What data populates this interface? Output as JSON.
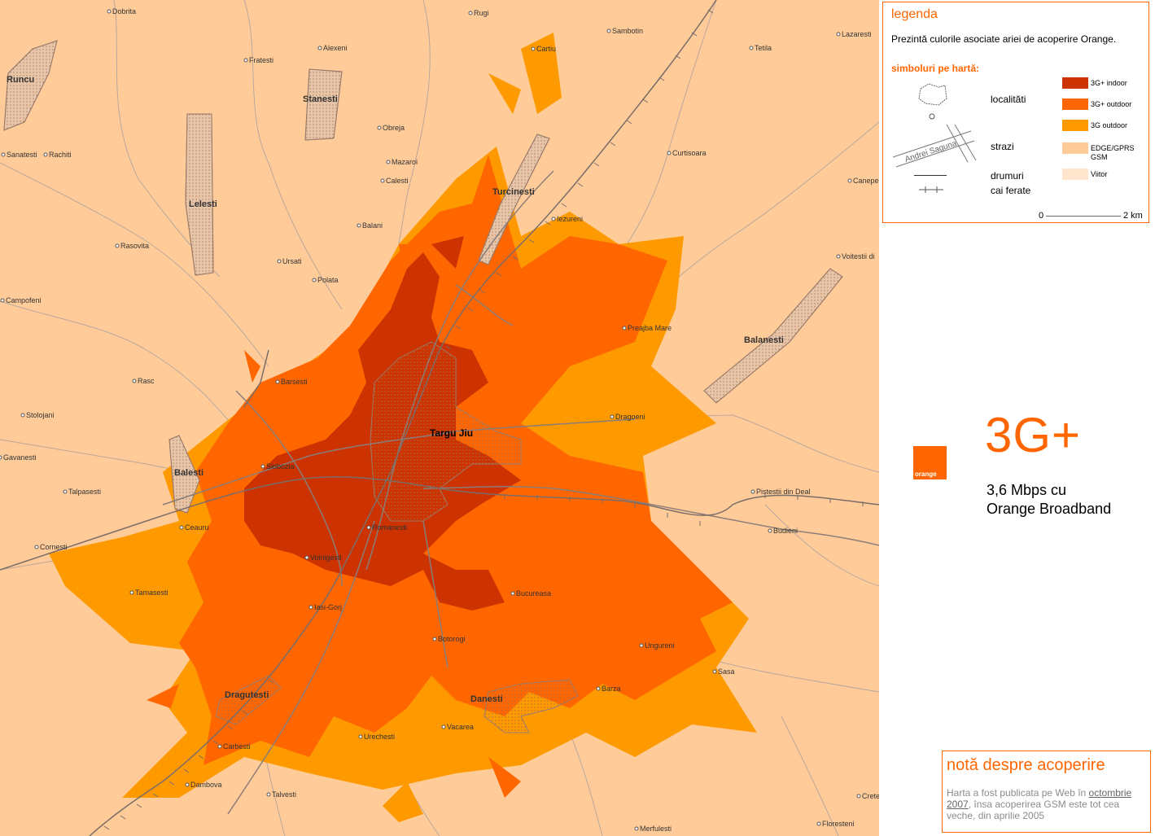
{
  "legend": {
    "title": "legenda",
    "description": "Prezintă culorile asociate ariei de acoperire Orange.",
    "symbols_title": "simboluri pe hartă:",
    "symbols": {
      "localities": "localităti",
      "streets": "strazi",
      "street_sample": "Andrei Saguna",
      "roads": "drumuri",
      "railways": "cai ferate"
    },
    "coverage": [
      {
        "label": "3G+ indoor",
        "color": "#cc3300"
      },
      {
        "label": "3G+ outdoor",
        "color": "#ff6600"
      },
      {
        "label": "3G outdoor",
        "color": "#ff9900"
      },
      {
        "label": "EDGE/GPRS GSM",
        "color": "#ffcc99"
      },
      {
        "label": "Viitor",
        "color": "#ffe6cc"
      }
    ],
    "scale": {
      "start": "0",
      "end": "2 km"
    }
  },
  "brand": {
    "logo_text": "orange",
    "headline": "3G+",
    "tagline_1": "3,6 Mbps cu",
    "tagline_2": "Orange Broadband"
  },
  "note": {
    "title": "notă despre acoperire",
    "text_before": "Harta a fost publicata pe Web în ",
    "link": "octombrie 2007",
    "text_after": ", însa acoperirea GSM este tot cea veche, din aprilie 2005"
  },
  "map": {
    "colors": {
      "background": "#ffcc99",
      "indoor": "#cc3300",
      "outdoor": "#ff6600",
      "outdoor3g": "#ff9900"
    },
    "city": "Targu Jiu",
    "towns": [
      "Runcu",
      "Stanesti",
      "Lelesti",
      "Turcinesti",
      "Balanesti",
      "Balesti",
      "Dragutesti",
      "Danesti"
    ],
    "places": [
      "Dobrita",
      "Rugi",
      "Sambotin",
      "Lazaresti",
      "Fratesti",
      "Alexeni",
      "Cartiu",
      "Tetila",
      "Obreja",
      "Sanatesti",
      "Rachiti",
      "Mazaroi",
      "Calesti",
      "Curtisoara",
      "Canepesti",
      "Rasovita",
      "Balani",
      "Iezureni",
      "Ursati",
      "Polata",
      "Voitestii di",
      "Campofeni",
      "Preajba Mare",
      "Rasc",
      "Barsesti",
      "Stolojani",
      "Dragoeni",
      "Gavanesti",
      "Slobozia",
      "Talpasesti",
      "Pistestii din Deal",
      "Ceauru",
      "Romanesti",
      "Budieni",
      "Cornesti",
      "Voinigesti",
      "Tamasesti",
      "Bucureasa",
      "Iasi-Gorj",
      "Botorogi",
      "Ungureni",
      "Sasa",
      "Barza",
      "Vacarea",
      "Urechesti",
      "Carbesti",
      "Dambova",
      "Talvesti",
      "Merfulesti",
      "Floresteni",
      "Crete"
    ]
  }
}
